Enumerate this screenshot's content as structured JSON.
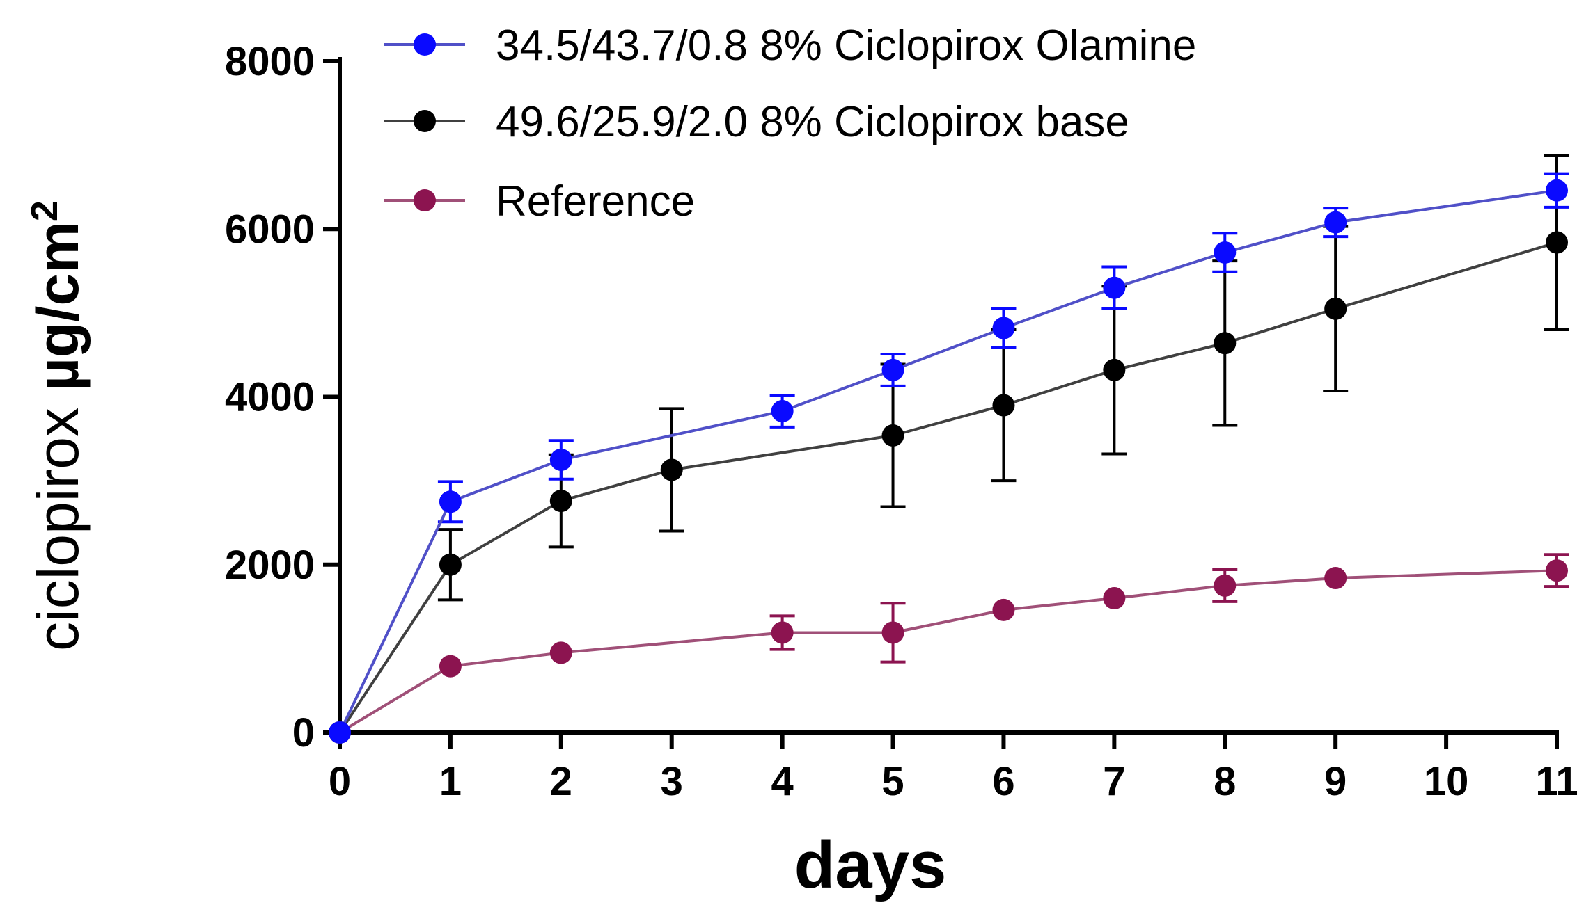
{
  "chart_data": {
    "type": "line",
    "title": "",
    "xlabel": "days",
    "ylabel_main": "ciclopirox ",
    "ylabel_unit": "µg/cm",
    "ylabel_sup": "2",
    "xlim": [
      0,
      11
    ],
    "ylim": [
      0,
      8000
    ],
    "xticks": [
      "0",
      "1",
      "2",
      "3",
      "4",
      "5",
      "6",
      "7",
      "8",
      "9",
      "10",
      "11"
    ],
    "yticks": [
      "0",
      "2000",
      "4000",
      "6000",
      "8000"
    ],
    "grid": false,
    "legend_position": "top-left",
    "series": [
      {
        "name": "34.5/43.7/0.8 8% Ciclopirox Olamine",
        "color": "#0a0aff",
        "line_color": "#5050c8",
        "x": [
          0,
          1,
          2,
          4,
          5,
          6,
          7,
          8,
          9,
          11
        ],
        "y": [
          0,
          2750,
          3250,
          3830,
          4320,
          4820,
          5300,
          5720,
          6080,
          6460
        ],
        "err": [
          0,
          240,
          230,
          190,
          190,
          230,
          250,
          230,
          170,
          200
        ]
      },
      {
        "name": "49.6/25.9/2.0 8% Ciclopirox base",
        "color": "#000000",
        "line_color": "#404040",
        "x": [
          0,
          1,
          2,
          3,
          5,
          6,
          7,
          8,
          9,
          11
        ],
        "y": [
          0,
          2000,
          2760,
          3130,
          3540,
          3900,
          4320,
          4640,
          5050,
          5840
        ],
        "err": [
          0,
          420,
          550,
          730,
          850,
          900,
          1000,
          980,
          980,
          1040
        ]
      },
      {
        "name": "Reference",
        "color": "#8c1450",
        "line_color": "#a05078",
        "x": [
          0,
          1,
          2,
          4,
          5,
          6,
          7,
          8,
          9,
          11
        ],
        "y": [
          0,
          790,
          950,
          1190,
          1190,
          1460,
          1600,
          1750,
          1840,
          1930
        ],
        "err": [
          0,
          0,
          0,
          200,
          350,
          0,
          0,
          190,
          0,
          190
        ]
      }
    ]
  }
}
